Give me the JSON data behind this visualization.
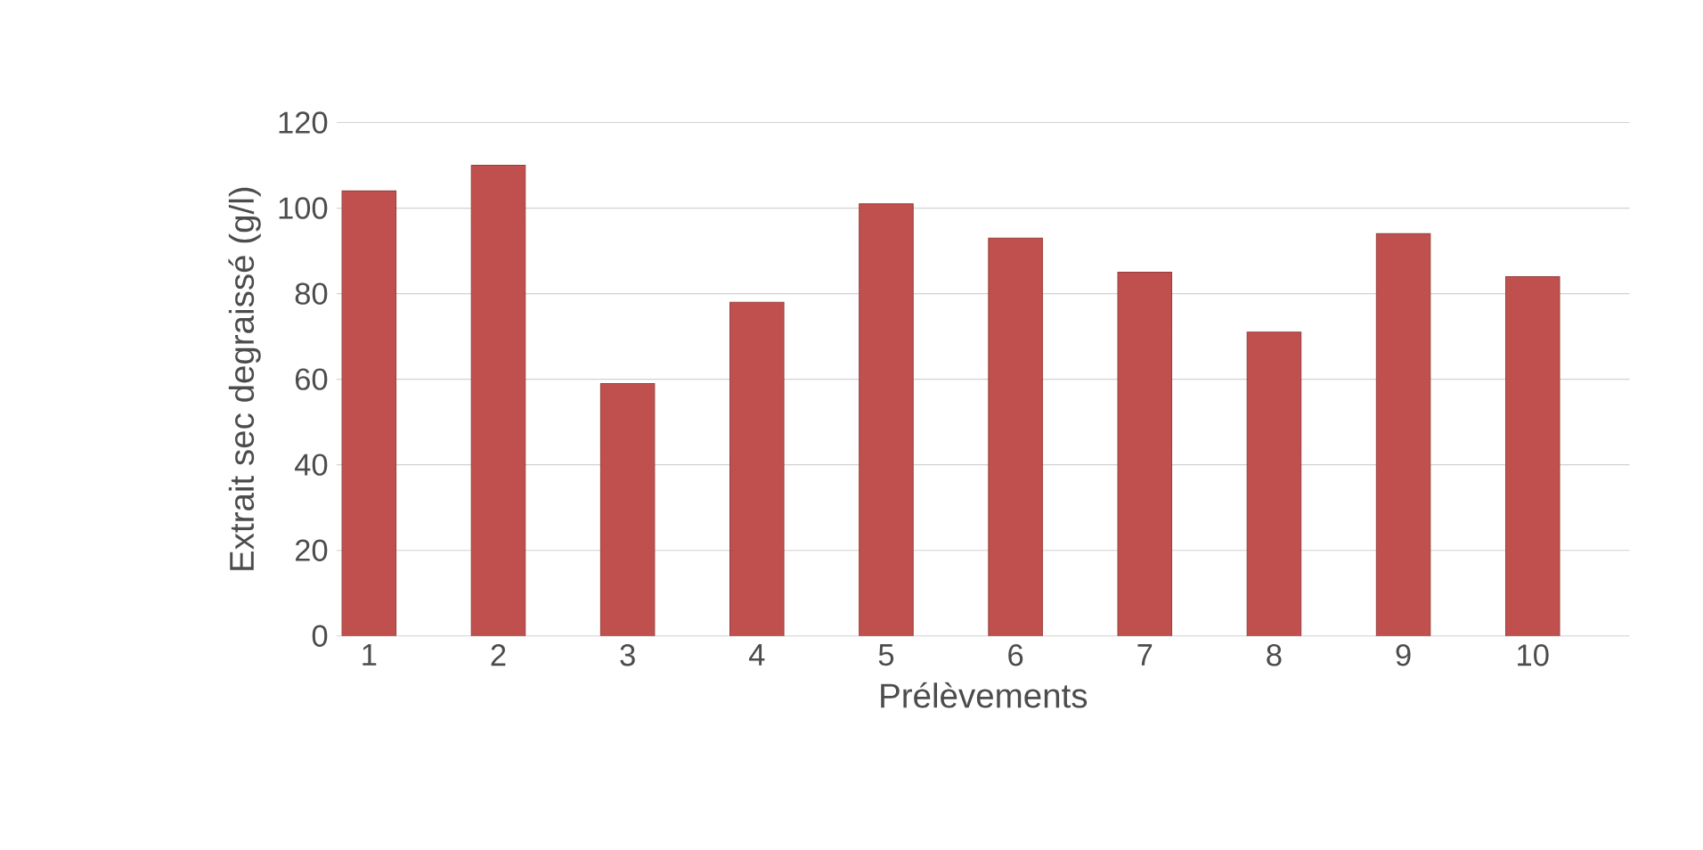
{
  "chart_data": {
    "type": "bar",
    "xlabel": "Prélèvements",
    "ylabel": "Extrait sec degraissé (g/l)",
    "categories": [
      "1",
      "2",
      "3",
      "4",
      "5",
      "6",
      "7",
      "8",
      "9",
      "10"
    ],
    "values": [
      104,
      110,
      59,
      78,
      101,
      93,
      85,
      71,
      94,
      84
    ],
    "color": "#c0504d",
    "ylim": [
      0,
      120
    ],
    "yticks": [
      0,
      20,
      40,
      60,
      80,
      100,
      120
    ],
    "grid": "y"
  }
}
